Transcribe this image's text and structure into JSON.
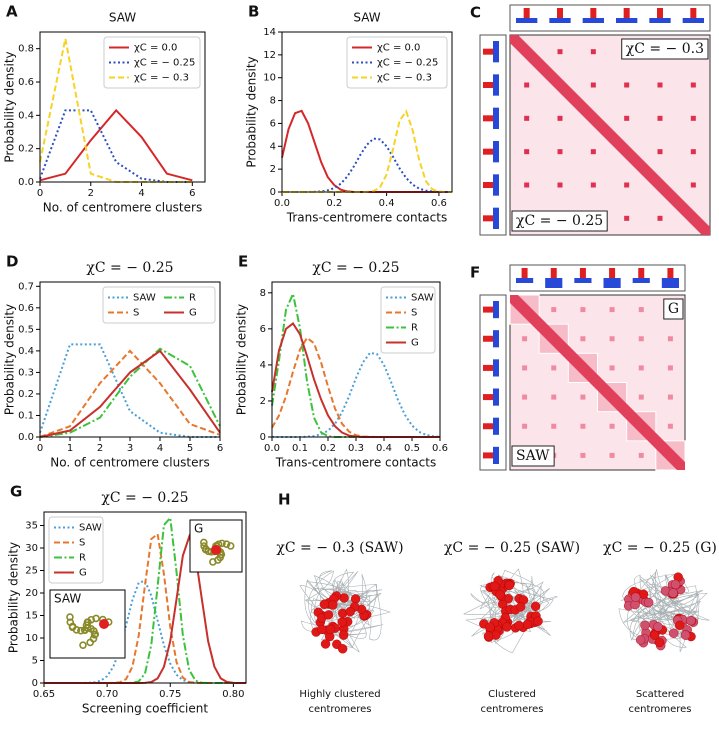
{
  "chart_data": [
    {
      "type": "line",
      "panel": "A",
      "title": "SAW",
      "xlabel": "No. of centromere clusters",
      "ylabel": "Probability density",
      "x": [
        0,
        1,
        2,
        3,
        4,
        5,
        6
      ],
      "series": [
        {
          "name": "χC = 0.0",
          "color": "#d62728",
          "dash": "solid",
          "values": [
            0.01,
            0.05,
            0.25,
            0.43,
            0.27,
            0.05,
            0.01
          ]
        },
        {
          "name": "χC = − 0.25",
          "color": "#2b4fc0",
          "dash": "dotted",
          "values": [
            0.02,
            0.43,
            0.43,
            0.12,
            0.02,
            0,
            0
          ]
        },
        {
          "name": "χC = − 0.3",
          "color": "#f5d327",
          "dash": "dashed",
          "values": [
            0.12,
            0.86,
            0.05,
            0,
            0,
            0,
            0
          ]
        }
      ],
      "xlim": [
        0,
        6.5
      ],
      "xticks": [
        0,
        2,
        4,
        6
      ],
      "ylim": [
        0,
        0.9
      ],
      "yticks": [
        {
          "value": 0,
          "label": "0.0"
        },
        0.2,
        0.4,
        0.6,
        0.8
      ],
      "legend": "upper right"
    },
    {
      "type": "line",
      "panel": "B",
      "title": "SAW",
      "xlabel": "Trans-centromere contacts",
      "ylabel": "Probability density",
      "x": [
        0,
        0.025,
        0.05,
        0.075,
        0.1,
        0.125,
        0.15,
        0.175,
        0.2,
        0.225,
        0.25,
        0.275,
        0.3,
        0.325,
        0.35,
        0.375,
        0.4,
        0.425,
        0.45,
        0.475,
        0.5,
        0.525,
        0.55,
        0.575,
        0.6,
        0.625,
        0.65
      ],
      "series": [
        {
          "name": "χC = 0.0",
          "color": "#d62728",
          "dash": "solid",
          "values": [
            3.0,
            5.5,
            6.9,
            7.1,
            6.0,
            4.3,
            2.6,
            1.3,
            0.6,
            0.2,
            0.05,
            0,
            0,
            0,
            0,
            0,
            0,
            0,
            0,
            0,
            0,
            0,
            0,
            0,
            0,
            0,
            0
          ]
        },
        {
          "name": "χC = − 0.25",
          "color": "#2b4fc0",
          "dash": "dotted",
          "values": [
            0,
            0,
            0,
            0,
            0,
            0.02,
            0.05,
            0.15,
            0.35,
            0.73,
            1.37,
            2.25,
            3.27,
            4.14,
            4.67,
            4.6,
            4.0,
            3.06,
            2.05,
            1.22,
            0.64,
            0.29,
            0.12,
            0.04,
            0.01,
            0,
            0
          ]
        },
        {
          "name": "χC = − 0.3",
          "color": "#f5d327",
          "dash": "dashed",
          "values": [
            0,
            0,
            0,
            0,
            0,
            0,
            0,
            0,
            0,
            0,
            0,
            0,
            0,
            0.01,
            0.08,
            0.42,
            1.54,
            3.8,
            6.27,
            7.05,
            5.36,
            2.75,
            0.96,
            0.23,
            0.04,
            0,
            0
          ]
        }
      ],
      "xlim": [
        0,
        0.65
      ],
      "xticks": [
        {
          "value": 0,
          "label": "0.0"
        },
        0.2,
        0.4,
        0.6
      ],
      "ylim": [
        0,
        14
      ],
      "yticks": [
        0,
        2,
        4,
        6,
        8,
        10,
        12,
        14
      ],
      "legend": "upper right"
    },
    {
      "type": "line",
      "panel": "D",
      "title": "χC = − 0.25",
      "xlabel": "No. of centromere clusters",
      "ylabel": "Probability density",
      "x": [
        0,
        1,
        2,
        3,
        4,
        5,
        6
      ],
      "series": [
        {
          "name": "SAW",
          "color": "#4a9fd8",
          "dash": "dotted",
          "values": [
            0.02,
            0.43,
            0.43,
            0.12,
            0.02,
            0,
            0
          ]
        },
        {
          "name": "S",
          "color": "#e8772e",
          "dash": "dashed",
          "values": [
            0,
            0.05,
            0.25,
            0.4,
            0.25,
            0.06,
            0.01
          ]
        },
        {
          "name": "R",
          "color": "#3cc23c",
          "dash": "dashdot",
          "values": [
            0,
            0.02,
            0.09,
            0.28,
            0.41,
            0.33,
            0.05
          ]
        },
        {
          "name": "G",
          "color": "#c8302c",
          "dash": "solid",
          "values": [
            0,
            0.03,
            0.14,
            0.3,
            0.4,
            0.22,
            0.02
          ]
        }
      ],
      "xlim": [
        0,
        6
      ],
      "xticks": [
        0,
        1,
        2,
        3,
        4,
        5,
        6
      ],
      "ylim": [
        0,
        0.72
      ],
      "yticks": [
        {
          "value": 0,
          "label": "0.0"
        },
        0.1,
        0.2,
        0.3,
        0.4,
        0.5,
        0.6,
        0.7
      ],
      "legend": "upper right",
      "legend_columns": 2
    },
    {
      "type": "line",
      "panel": "E",
      "title": "χC = − 0.25",
      "xlabel": "Trans-centromere contacts",
      "ylabel": "Probability density",
      "x": [
        0,
        0.025,
        0.05,
        0.075,
        0.1,
        0.125,
        0.15,
        0.175,
        0.2,
        0.225,
        0.25,
        0.275,
        0.3,
        0.325,
        0.35,
        0.375,
        0.4,
        0.425,
        0.45,
        0.475,
        0.5,
        0.525,
        0.55,
        0.575,
        0.6
      ],
      "series": [
        {
          "name": "SAW",
          "color": "#4a9fd8",
          "dash": "dotted",
          "values": [
            0,
            0,
            0,
            0,
            0,
            0.02,
            0.05,
            0.15,
            0.35,
            0.73,
            1.37,
            2.25,
            3.27,
            4.14,
            4.67,
            4.6,
            4.0,
            3.06,
            2.05,
            1.22,
            0.64,
            0.29,
            0.12,
            0.04,
            0.01
          ]
        },
        {
          "name": "S",
          "color": "#e8772e",
          "dash": "dashed",
          "values": [
            0.52,
            1.19,
            2.26,
            3.62,
            4.85,
            5.5,
            5.2,
            4.15,
            2.8,
            1.58,
            0.74,
            0.3,
            0.1,
            0.03,
            0.01,
            0,
            0,
            0,
            0,
            0,
            0,
            0,
            0,
            0,
            0
          ]
        },
        {
          "name": "R",
          "color": "#3cc23c",
          "dash": "dashdot",
          "values": [
            1.73,
            4.26,
            7.06,
            7.94,
            6.04,
            3.1,
            1.08,
            0.26,
            0.04,
            0,
            0,
            0,
            0,
            0,
            0,
            0,
            0,
            0,
            0,
            0,
            0,
            0,
            0,
            0,
            0
          ]
        },
        {
          "name": "G",
          "color": "#c8302c",
          "dash": "solid",
          "values": [
            2.5,
            4.8,
            6.0,
            6.3,
            5.7,
            4.5,
            3.2,
            2.1,
            1.2,
            0.6,
            0.25,
            0.08,
            0.02,
            0,
            0,
            0,
            0,
            0,
            0,
            0,
            0,
            0,
            0,
            0,
            0
          ]
        }
      ],
      "xlim": [
        0,
        0.6
      ],
      "xticks": [
        {
          "value": 0,
          "label": "0.0"
        },
        0.1,
        0.2,
        0.3,
        0.4,
        0.5,
        0.6
      ],
      "ylim": [
        0,
        8.6
      ],
      "yticks": [
        0,
        2,
        4,
        6,
        8
      ],
      "legend": "upper right"
    },
    {
      "type": "line",
      "panel": "G",
      "title": "χC = − 0.25",
      "xlabel": "Screening coefficient",
      "ylabel": "Probability density",
      "x": [
        0.65,
        0.655,
        0.66,
        0.665,
        0.67,
        0.675,
        0.68,
        0.685,
        0.69,
        0.695,
        0.7,
        0.705,
        0.71,
        0.715,
        0.72,
        0.725,
        0.73,
        0.735,
        0.74,
        0.745,
        0.75,
        0.755,
        0.76,
        0.765,
        0.77,
        0.775,
        0.78,
        0.785,
        0.79,
        0.795,
        0.8,
        0.805,
        0.81
      ],
      "series": [
        {
          "name": "SAW",
          "color": "#4a9fd8",
          "dash": "dotted",
          "values": [
            0,
            0,
            0,
            0,
            0,
            0,
            0,
            0.04,
            0.15,
            0.52,
            1.51,
            3.65,
            7.47,
            12.8,
            18.4,
            22.3,
            22.7,
            19.4,
            13.9,
            8.4,
            4.3,
            1.83,
            0.65,
            0.2,
            0.05,
            0,
            0,
            0,
            0,
            0,
            0,
            0,
            0
          ]
        },
        {
          "name": "S",
          "color": "#e8772e",
          "dash": "dashed",
          "values": [
            0,
            0,
            0,
            0,
            0,
            0,
            0,
            0,
            0,
            0,
            0,
            0.02,
            0.15,
            0.87,
            3.6,
            10.5,
            21.8,
            32,
            33.1,
            24.2,
            12.5,
            4.6,
            1.2,
            0.22,
            0.03,
            0,
            0,
            0,
            0,
            0,
            0,
            0,
            0
          ]
        },
        {
          "name": "R",
          "color": "#3cc23c",
          "dash": "dashdot",
          "values": [
            0,
            0,
            0,
            0,
            0,
            0,
            0,
            0,
            0,
            0,
            0,
            0,
            0,
            0,
            0.04,
            0.34,
            2.1,
            8.5,
            21.5,
            35.1,
            36.7,
            24.6,
            10.6,
            2.9,
            0.52,
            0.06,
            0,
            0,
            0,
            0,
            0,
            0,
            0
          ]
        },
        {
          "name": "G",
          "color": "#c8302c",
          "dash": "solid",
          "values": [
            0,
            0,
            0,
            0,
            0,
            0,
            0,
            0,
            0,
            0,
            0,
            0,
            0,
            0,
            0,
            0,
            0.04,
            0.22,
            1.02,
            3.6,
            9.3,
            18.7,
            28.3,
            32.5,
            28.3,
            18.7,
            9.3,
            3.6,
            1.02,
            0.22,
            0.04,
            0,
            0
          ]
        }
      ],
      "xlim": [
        0.65,
        0.81
      ],
      "xticks": [
        0.65,
        {
          "value": 0.7,
          "label": "0.70"
        },
        0.75,
        {
          "value": 0.8,
          "label": "0.80"
        }
      ],
      "ylim": [
        0,
        38
      ],
      "yticks": [
        0,
        5,
        10,
        15,
        20,
        25,
        30,
        35
      ],
      "legend": "upper left",
      "insets": [
        "G",
        "SAW"
      ]
    }
  ],
  "heatmaps": [
    {
      "panel": "C",
      "labels": [
        "χC = − 0.3",
        "χC = − 0.25"
      ]
    },
    {
      "panel": "F",
      "labels": [
        "G",
        "SAW"
      ]
    }
  ],
  "renders": {
    "panel": "H",
    "items": [
      {
        "title": "χC = − 0.3 (SAW)",
        "caption": [
          "Highly clustered",
          "centromeres"
        ]
      },
      {
        "title": "χC = − 0.25 (SAW)",
        "caption": [
          "Clustered",
          "centromeres"
        ]
      },
      {
        "title": "χC = − 0.25 (G)",
        "caption": [
          "Scattered",
          "centromeres"
        ]
      }
    ]
  }
}
